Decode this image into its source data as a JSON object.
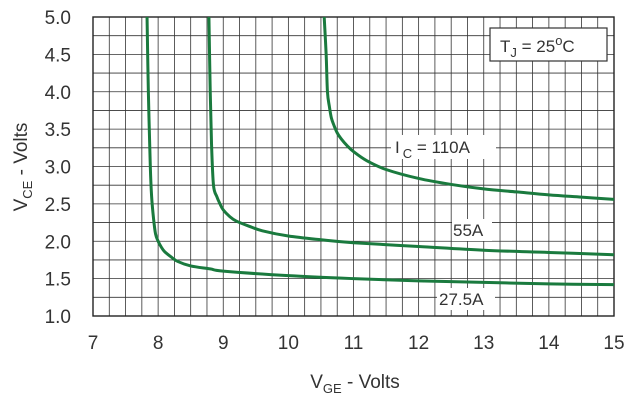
{
  "chart_data": {
    "type": "line",
    "xlabel": {
      "main": "V",
      "sub": "GE",
      "rest": " - Volts"
    },
    "ylabel": {
      "main": "V",
      "sub": "CE",
      "rest": " - Volts"
    },
    "xlim": [
      7,
      15
    ],
    "ylim": [
      1.0,
      5.0
    ],
    "x_ticks": [
      "7",
      "8",
      "9",
      "10",
      "11",
      "12",
      "13",
      "14",
      "15"
    ],
    "y_ticks": [
      "1.0",
      "1.5",
      "2.0",
      "2.5",
      "3.0",
      "3.5",
      "4.0",
      "4.5",
      "5.0"
    ],
    "grid": true,
    "line_color": "#1a7a3e",
    "condition": {
      "main": "T",
      "sub": "J",
      "mid": " = 25",
      "sup": "o",
      "end": "C"
    },
    "series": [
      {
        "label_parts": {
          "main": "I",
          "sub": "C",
          "rest": " = 110A"
        },
        "x": [
          10.55,
          10.58,
          10.6,
          10.63,
          10.66,
          10.7,
          10.75,
          10.82,
          10.9,
          11.0,
          11.2,
          11.5,
          12.0,
          12.5,
          13.0,
          13.5,
          14.0,
          14.5,
          15.0
        ],
        "y": [
          5.0,
          4.5,
          4.0,
          3.8,
          3.65,
          3.55,
          3.45,
          3.36,
          3.28,
          3.2,
          3.08,
          2.96,
          2.84,
          2.76,
          2.7,
          2.66,
          2.62,
          2.59,
          2.56
        ]
      },
      {
        "label_parts": {
          "main": "",
          "sub": "",
          "rest": "55A"
        },
        "x": [
          8.78,
          8.8,
          8.82,
          8.85,
          8.9,
          8.95,
          9.0,
          9.1,
          9.2,
          9.4,
          9.6,
          10.0,
          10.5,
          11.0,
          12.0,
          13.0,
          14.0,
          15.0
        ],
        "y": [
          5.0,
          4.0,
          3.3,
          2.75,
          2.6,
          2.5,
          2.42,
          2.33,
          2.27,
          2.2,
          2.14,
          2.07,
          2.02,
          1.98,
          1.93,
          1.88,
          1.85,
          1.82
        ]
      },
      {
        "label_parts": {
          "main": "",
          "sub": "",
          "rest": "27.5A"
        },
        "x": [
          7.83,
          7.85,
          7.88,
          7.9,
          7.93,
          7.96,
          8.0,
          8.05,
          8.1,
          8.2,
          8.3,
          8.5,
          8.8,
          9.0,
          10.0,
          11.0,
          12.0,
          13.0,
          14.0,
          15.0
        ],
        "y": [
          5.0,
          4.0,
          3.0,
          2.6,
          2.3,
          2.1,
          2.0,
          1.92,
          1.86,
          1.79,
          1.73,
          1.67,
          1.63,
          1.6,
          1.54,
          1.5,
          1.47,
          1.45,
          1.43,
          1.42
        ]
      }
    ]
  }
}
